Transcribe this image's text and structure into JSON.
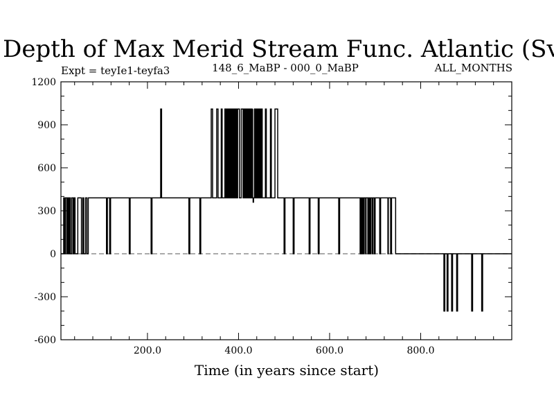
{
  "chart_data": {
    "type": "line",
    "title": "Depth of Max Merid Stream Func. Atlantic (Sv)",
    "expt_label": "Expt = teyIe1-teyfa3",
    "period_label": "148_6_MaBP - 000_0_MaBP",
    "months_label": "ALL_MONTHS",
    "xlabel": "Time (in years since start)",
    "ylabel": "",
    "xlim": [
      10,
      1000
    ],
    "ylim": [
      -600,
      1200
    ],
    "x_ticks": [
      200,
      400,
      600,
      800
    ],
    "x_tick_labels": [
      "200.0",
      "400.0",
      "600.0",
      "800.0"
    ],
    "y_ticks": [
      -600,
      -300,
      0,
      300,
      600,
      900,
      1200
    ],
    "y_tick_labels": [
      "-600",
      "-300",
      "0",
      "300",
      "600",
      "900",
      "1200"
    ],
    "zero_line": "dashed",
    "series": [
      {
        "values_step": [
          [
            10,
            0
          ],
          [
            16,
            390
          ],
          [
            18,
            0
          ],
          [
            20,
            390
          ],
          [
            23,
            0
          ],
          [
            25,
            390
          ],
          [
            27,
            0
          ],
          [
            29,
            390
          ],
          [
            31,
            0
          ],
          [
            34,
            390
          ],
          [
            37,
            0
          ],
          [
            39,
            390
          ],
          [
            41,
            0
          ],
          [
            47,
            390
          ],
          [
            55,
            0
          ],
          [
            58,
            390
          ],
          [
            60,
            0
          ],
          [
            64,
            390
          ],
          [
            67,
            0
          ],
          [
            70,
            390
          ],
          [
            110,
            0
          ],
          [
            112,
            390
          ],
          [
            117,
            0
          ],
          [
            119,
            390
          ],
          [
            160,
            0
          ],
          [
            162,
            390
          ],
          [
            208,
            0
          ],
          [
            210,
            390
          ],
          [
            229,
            1010
          ],
          [
            231,
            390
          ],
          [
            291,
            0
          ],
          [
            293,
            390
          ],
          [
            315,
            0
          ],
          [
            317,
            390
          ],
          [
            340,
            1010
          ],
          [
            343,
            390
          ],
          [
            352,
            1010
          ],
          [
            355,
            390
          ],
          [
            362,
            1010
          ],
          [
            364,
            390
          ],
          [
            370,
            1010
          ],
          [
            372,
            390
          ],
          [
            373,
            1010
          ],
          [
            375,
            390
          ],
          [
            376,
            1010
          ],
          [
            378,
            390
          ],
          [
            379,
            1010
          ],
          [
            380,
            390
          ],
          [
            381,
            1010
          ],
          [
            383,
            390
          ],
          [
            384,
            1010
          ],
          [
            386,
            390
          ],
          [
            388,
            1010
          ],
          [
            390,
            390
          ],
          [
            391,
            1010
          ],
          [
            393,
            390
          ],
          [
            394,
            1010
          ],
          [
            396,
            390
          ],
          [
            398,
            1010
          ],
          [
            402,
            390
          ],
          [
            406,
            1010
          ],
          [
            410,
            390
          ],
          [
            412,
            1010
          ],
          [
            414,
            390
          ],
          [
            416,
            1010
          ],
          [
            418,
            390
          ],
          [
            420,
            1010
          ],
          [
            422,
            390
          ],
          [
            424,
            1010
          ],
          [
            426,
            390
          ],
          [
            428,
            1010
          ],
          [
            430,
            390
          ],
          [
            431,
            1010
          ],
          [
            433,
            390
          ],
          [
            435,
            1010
          ],
          [
            437,
            390
          ],
          [
            439,
            1010
          ],
          [
            441,
            390
          ],
          [
            442,
            1010
          ],
          [
            444,
            390
          ],
          [
            446,
            1010
          ],
          [
            448,
            390
          ],
          [
            450,
            1010
          ],
          [
            452,
            390
          ],
          [
            459,
            1010
          ],
          [
            461,
            390
          ],
          [
            470,
            1010
          ],
          [
            472,
            390
          ],
          [
            480,
            1010
          ],
          [
            486,
            390
          ],
          [
            431,
            390
          ],
          [
            432,
            360
          ],
          [
            433,
            390
          ],
          [
            500,
            0
          ],
          [
            502,
            390
          ],
          [
            520,
            0
          ],
          [
            522,
            390
          ],
          [
            555,
            0
          ],
          [
            557,
            390
          ],
          [
            575,
            0
          ],
          [
            577,
            390
          ],
          [
            620,
            0
          ],
          [
            622,
            390
          ],
          [
            667,
            0
          ],
          [
            669,
            390
          ],
          [
            670,
            0
          ],
          [
            672,
            390
          ],
          [
            674,
            0
          ],
          [
            676,
            390
          ],
          [
            679,
            0
          ],
          [
            680,
            390
          ],
          [
            684,
            0
          ],
          [
            685,
            390
          ],
          [
            687,
            0
          ],
          [
            688,
            390
          ],
          [
            690,
            0
          ],
          [
            691,
            390
          ],
          [
            694,
            0
          ],
          [
            695,
            390
          ],
          [
            698,
            0
          ],
          [
            700,
            390
          ],
          [
            710,
            0
          ],
          [
            712,
            390
          ],
          [
            728,
            0
          ],
          [
            729,
            390
          ],
          [
            734,
            0
          ],
          [
            736,
            390
          ],
          [
            745,
            0
          ],
          [
            851,
            -400
          ],
          [
            853,
            0
          ],
          [
            858,
            -400
          ],
          [
            860,
            0
          ],
          [
            868,
            -400
          ],
          [
            870,
            0
          ],
          [
            879,
            -400
          ],
          [
            881,
            0
          ],
          [
            912,
            -400
          ],
          [
            914,
            0
          ],
          [
            934,
            -400
          ],
          [
            936,
            0
          ],
          [
            1000,
            0
          ]
        ]
      }
    ]
  }
}
